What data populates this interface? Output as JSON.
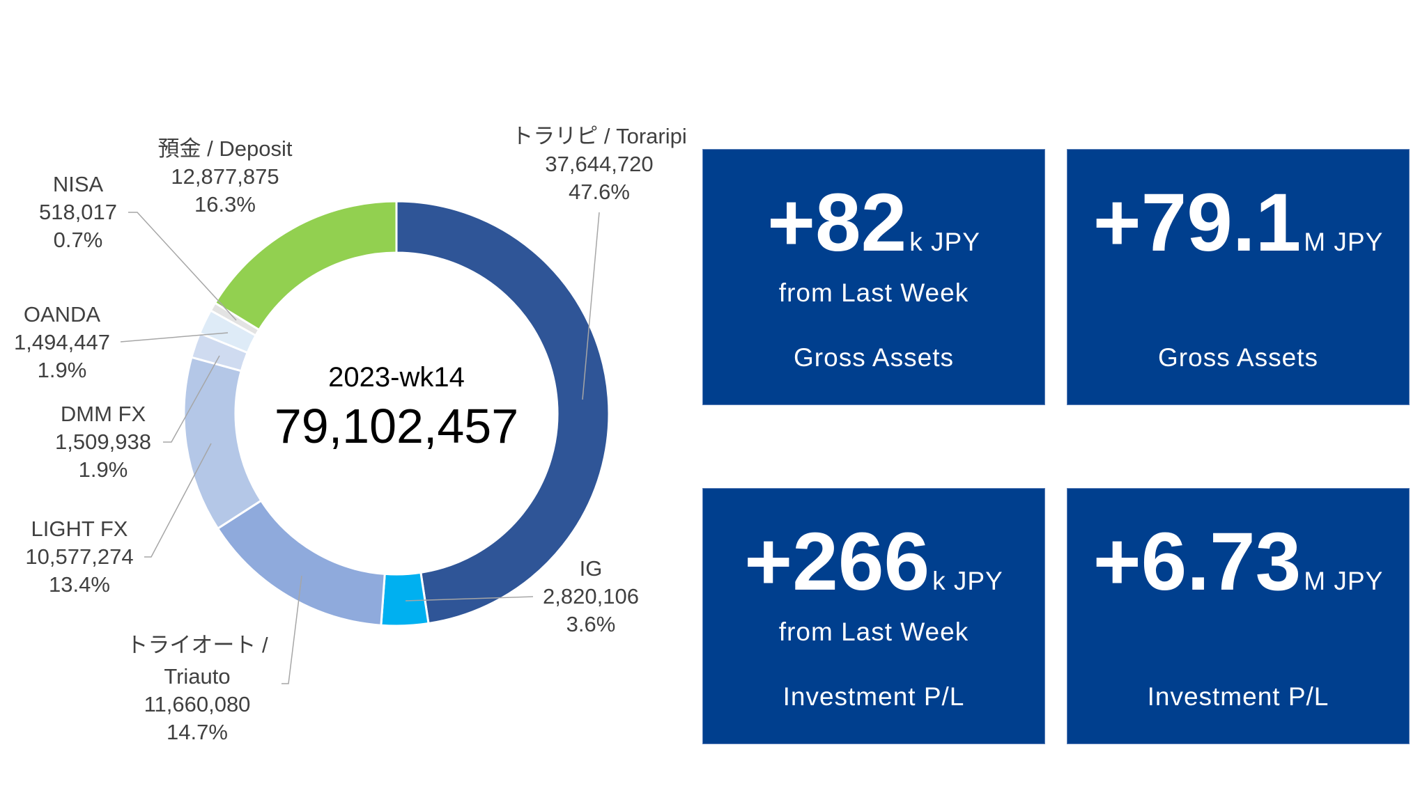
{
  "chart_data": {
    "type": "pie",
    "variant": "donut",
    "center": {
      "title": "2023-wk14",
      "total": "79,102,457"
    },
    "colors": {
      "torarippi": "#2F5597",
      "ig": "#00B0F0",
      "triauto": "#8FAADC",
      "lightfx": "#B4C7E7",
      "dmmfx": "#CFDBF0",
      "oanda": "#DEEBF7",
      "nisa": "#E3E3E3",
      "deposit": "#92D050"
    },
    "slices": [
      {
        "key": "torarippi",
        "name": "トラリピ / Toraripi",
        "value": 37644720,
        "value_label": "37,644,720",
        "percent": "47.6%"
      },
      {
        "key": "ig",
        "name": "IG",
        "value": 2820106,
        "value_label": "2,820,106",
        "percent": "3.6%"
      },
      {
        "key": "triauto",
        "name": "トライオート /",
        "name2": "Triauto",
        "value": 11660080,
        "value_label": "11,660,080",
        "percent": "14.7%"
      },
      {
        "key": "lightfx",
        "name": "LIGHT FX",
        "value": 10577274,
        "value_label": "10,577,274",
        "percent": "13.4%"
      },
      {
        "key": "dmmfx",
        "name": "DMM FX",
        "value": 1509938,
        "value_label": "1,509,938",
        "percent": "1.9%"
      },
      {
        "key": "oanda",
        "name": "OANDA",
        "value": 1494447,
        "value_label": "1,494,447",
        "percent": "1.9%"
      },
      {
        "key": "nisa",
        "name": "NISA",
        "value": 518017,
        "value_label": "518,017",
        "percent": "0.7%"
      },
      {
        "key": "deposit",
        "name": "預金 / Deposit",
        "value": 12877875,
        "value_label": "12,877,875",
        "percent": "16.3%"
      }
    ]
  },
  "cards": [
    {
      "value": "+82",
      "unit": "k JPY",
      "sub": "from Last Week",
      "caption": "Gross Assets"
    },
    {
      "value": "+79.1",
      "unit": "M JPY",
      "sub": "",
      "caption": "Gross Assets"
    },
    {
      "value": "+266",
      "unit": "k JPY",
      "sub": "from Last Week",
      "caption": "Investment P/L"
    },
    {
      "value": "+6.73",
      "unit": "M JPY",
      "sub": "",
      "caption": "Investment P/L"
    }
  ],
  "card_color": "#003F8E"
}
